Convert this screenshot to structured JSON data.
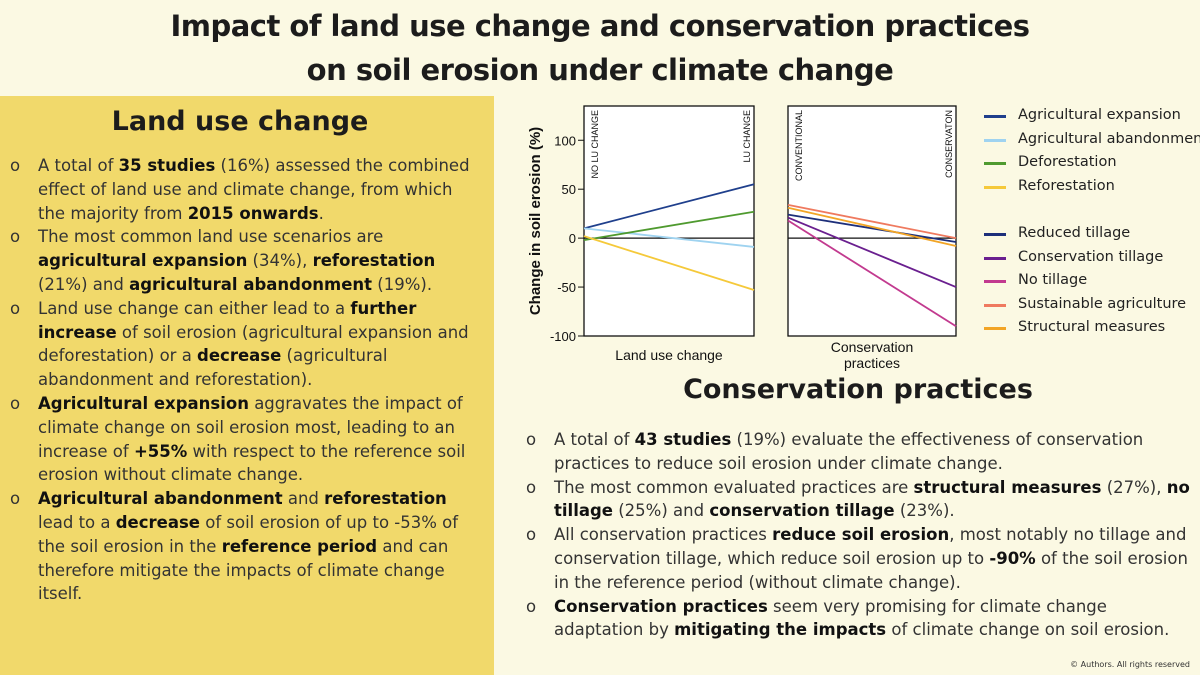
{
  "title_line1": "Impact of land use change and conservation practices",
  "title_line2": "on soil erosion under climate change",
  "land_use": {
    "heading": "Land use change",
    "bullets": [
      [
        {
          "t": "A total of "
        },
        {
          "t": "35 studies",
          "b": true
        },
        {
          "t": " (16%) assessed the combined effect of land use and climate change, from which the majority from "
        },
        {
          "t": "2015 onwards",
          "b": true
        },
        {
          "t": "."
        }
      ],
      [
        {
          "t": "The most common land use scenarios are "
        },
        {
          "t": "agricultural expansion",
          "b": true
        },
        {
          "t": " (34%), "
        },
        {
          "t": "reforestation",
          "b": true
        },
        {
          "t": " (21%) and "
        },
        {
          "t": "agricultural abandonment",
          "b": true
        },
        {
          "t": " (19%)."
        }
      ],
      [
        {
          "t": "Land use change can either lead to a "
        },
        {
          "t": "further increase",
          "b": true
        },
        {
          "t": " of soil erosion (agricultural expansion and deforestation) or a "
        },
        {
          "t": "decrease",
          "b": true
        },
        {
          "t": " (agricultural abandonment and reforestation)."
        }
      ],
      [
        {
          "t": "Agricultural expansion",
          "b": true
        },
        {
          "t": " aggravates the impact of climate change on soil erosion most, leading to an increase of "
        },
        {
          "t": "+55%",
          "b": true
        },
        {
          "t": " with respect to the reference soil erosion without climate change."
        }
      ],
      [
        {
          "t": "Agricultural abandonment",
          "b": true
        },
        {
          "t": " and "
        },
        {
          "t": "reforestation",
          "b": true
        },
        {
          "t": " lead to a "
        },
        {
          "t": "decrease",
          "b": true
        },
        {
          "t": " of soil erosion of up to -53% of the soil erosion in the "
        },
        {
          "t": "reference period",
          "b": true
        },
        {
          "t": " and can therefore mitigate the impacts of climate change itself."
        }
      ]
    ]
  },
  "conservation": {
    "heading": "Conservation practices",
    "bullets": [
      [
        {
          "t": "A total of "
        },
        {
          "t": "43 studies",
          "b": true
        },
        {
          "t": " (19%) evaluate the effectiveness of conservation practices to reduce soil erosion under climate change."
        }
      ],
      [
        {
          "t": "The most common evaluated practices are "
        },
        {
          "t": "structural measures",
          "b": true
        },
        {
          "t": " (27%), "
        },
        {
          "t": "no tillage",
          "b": true
        },
        {
          "t": " (25%) and "
        },
        {
          "t": "conservation tillage",
          "b": true
        },
        {
          "t": " (23%)."
        }
      ],
      [
        {
          "t": "All conservation practices "
        },
        {
          "t": "reduce soil erosion",
          "b": true
        },
        {
          "t": ", most notably no tillage and conservation tillage, which reduce soil erosion up to "
        },
        {
          "t": "-90%",
          "b": true
        },
        {
          "t": " of the soil erosion in the reference period (without climate change)."
        }
      ],
      [
        {
          "t": "Conservation practices",
          "b": true
        },
        {
          "t": " seem very promising for climate change adaptation by "
        },
        {
          "t": "mitigating the impacts",
          "b": true
        },
        {
          "t": " of climate change on soil erosion."
        }
      ]
    ]
  },
  "copyright": "© Authors. All rights reserved",
  "chart_data": {
    "type": "line",
    "ylabel": "Change in soil erosion (%)",
    "ylim": [
      -100,
      135
    ],
    "yticks": [
      100,
      50,
      0,
      -50,
      -100
    ],
    "panels": [
      {
        "xlabel": "Land use change",
        "x_start_label": "NO LU CHANGE",
        "x_end_label": "LU CHANGE",
        "series": [
          {
            "name": "Agricultural expansion",
            "color": "#1f3f8c",
            "values": [
              10,
              55
            ]
          },
          {
            "name": "Agricultural abandonment",
            "color": "#9fd3f0",
            "values": [
              10,
              -9
            ]
          },
          {
            "name": "Deforestation",
            "color": "#4f9a2f",
            "values": [
              -2,
              27
            ]
          },
          {
            "name": "Reforestation",
            "color": "#f5c93a",
            "values": [
              2,
              -53
            ]
          }
        ]
      },
      {
        "xlabel": "Conservation practices",
        "x_start_label": "CONVENTIONAL",
        "x_end_label": "CONSERVATON",
        "series": [
          {
            "name": "Reduced tillage",
            "color": "#1d2f7a",
            "values": [
              24,
              -4
            ]
          },
          {
            "name": "Conservation tillage",
            "color": "#6a1f8f",
            "values": [
              21,
              -50
            ]
          },
          {
            "name": "No tillage",
            "color": "#c23a8f",
            "values": [
              18,
              -90
            ]
          },
          {
            "name": "Sustainable agriculture",
            "color": "#ef7a5f",
            "values": [
              34,
              0
            ]
          },
          {
            "name": "Structural measures",
            "color": "#f2a526",
            "values": [
              31,
              -8
            ]
          }
        ]
      }
    ]
  }
}
